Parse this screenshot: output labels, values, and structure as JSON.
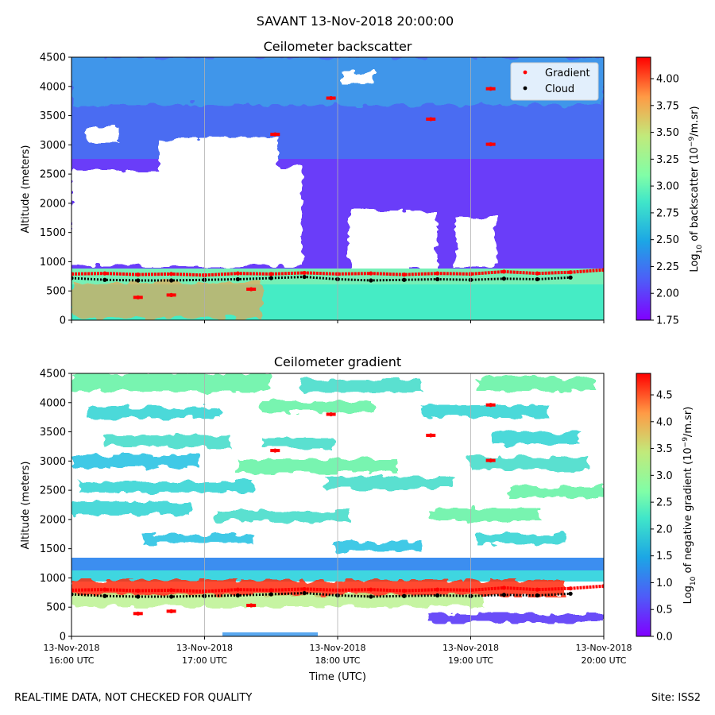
{
  "page": {
    "suptitle": "SAVANT 13-Nov-2018 20:00:00",
    "footer_left": "REAL-TIME DATA, NOT CHECKED FOR QUALITY",
    "footer_right": "Site: ISS2"
  },
  "chart_data": [
    {
      "type": "heatmap",
      "title": "Ceilometer backscatter",
      "ylabel": "Altitude (meters)",
      "xlabel": "",
      "xlim_hours": [
        16,
        20
      ],
      "ylim": [
        0,
        4500
      ],
      "yticks": [
        0,
        500,
        1000,
        1500,
        2000,
        2500,
        3000,
        3500,
        4000,
        4500
      ],
      "xtick_hours": [
        16,
        17,
        18,
        19,
        20
      ],
      "show_xtick_labels": false,
      "colorbar": {
        "label_prefix": "Log",
        "label_sub": "10",
        "label_mid": " of backscatter (10",
        "label_sup": "−9",
        "label_suffix": "/m.sr)",
        "range": [
          1.75,
          4.2
        ],
        "ticks": [
          "1.75",
          "2.00",
          "2.25",
          "2.50",
          "2.75",
          "3.00",
          "3.25",
          "3.50",
          "3.75",
          "4.00"
        ]
      },
      "legend": {
        "placement": "top-right",
        "entries": [
          {
            "label": "Gradient",
            "color": "#ff0000"
          },
          {
            "label": "Cloud",
            "color": "#000000"
          }
        ]
      },
      "series": [
        {
          "name": "Gradient (boundary layer top)",
          "color": "#ff0000",
          "x_hours": [
            16.0,
            16.25,
            16.5,
            16.75,
            17.0,
            17.25,
            17.5,
            17.75,
            18.0,
            18.25,
            18.5,
            18.75,
            19.0,
            19.25,
            19.5,
            19.75,
            20.0
          ],
          "y": [
            790,
            800,
            780,
            790,
            770,
            800,
            790,
            810,
            790,
            800,
            780,
            800,
            790,
            830,
            800,
            820,
            860
          ]
        },
        {
          "name": "Cloud",
          "color": "#000000",
          "x_hours": [
            16.0,
            16.25,
            16.5,
            16.75,
            17.0,
            17.25,
            17.5,
            17.75,
            18.0,
            18.25,
            18.5,
            18.75,
            19.0,
            19.25,
            19.5,
            19.75
          ],
          "y": [
            720,
            690,
            680,
            680,
            690,
            700,
            720,
            740,
            700,
            680,
            690,
            700,
            690,
            710,
            700,
            730
          ]
        },
        {
          "name": "Gradient (aloft)",
          "color": "#ff0000",
          "x_hours": [
            17.53,
            17.95,
            18.7,
            19.15,
            19.15,
            16.5,
            16.75,
            17.35
          ],
          "y": [
            3180,
            3800,
            3440,
            3960,
            3010,
            390,
            430,
            530
          ]
        }
      ]
    },
    {
      "type": "heatmap",
      "title": "Ceilometer gradient",
      "ylabel": "Altitude (meters)",
      "xlabel": "Time (UTC)",
      "xlim_hours": [
        16,
        20
      ],
      "ylim": [
        0,
        4500
      ],
      "yticks": [
        0,
        500,
        1000,
        1500,
        2000,
        2500,
        3000,
        3500,
        4000,
        4500
      ],
      "xtick_hours": [
        16,
        17,
        18,
        19,
        20
      ],
      "show_xtick_labels": true,
      "xtick_labels": [
        {
          "date": "13-Nov-2018",
          "time": "16:00 UTC"
        },
        {
          "date": "13-Nov-2018",
          "time": "17:00 UTC"
        },
        {
          "date": "13-Nov-2018",
          "time": "18:00 UTC"
        },
        {
          "date": "13-Nov-2018",
          "time": "19:00 UTC"
        },
        {
          "date": "13-Nov-2018",
          "time": "20:00 UTC"
        }
      ],
      "colorbar": {
        "label_prefix": "Log",
        "label_sub": "10",
        "label_mid": " of negative gradient (10",
        "label_sup": "−9",
        "label_suffix": "/m.sr)",
        "range": [
          0.0,
          4.9
        ],
        "ticks": [
          "0.0",
          "0.5",
          "1.0",
          "1.5",
          "2.0",
          "2.5",
          "3.0",
          "3.5",
          "4.0",
          "4.5"
        ]
      },
      "series": [
        {
          "name": "Gradient (boundary layer top)",
          "color": "#ff0000",
          "x_hours": [
            16.0,
            16.25,
            16.5,
            16.75,
            17.0,
            17.25,
            17.5,
            17.75,
            18.0,
            18.25,
            18.5,
            18.75,
            19.0,
            19.25,
            19.5,
            19.75,
            20.0
          ],
          "y": [
            790,
            800,
            780,
            790,
            770,
            800,
            790,
            810,
            790,
            800,
            780,
            800,
            790,
            830,
            800,
            820,
            860
          ]
        },
        {
          "name": "Cloud",
          "color": "#000000",
          "x_hours": [
            16.0,
            16.25,
            16.5,
            16.75,
            17.0,
            17.25,
            17.5,
            17.75,
            18.0,
            18.25,
            18.5,
            18.75,
            19.0,
            19.25,
            19.5,
            19.75
          ],
          "y": [
            720,
            690,
            680,
            680,
            690,
            700,
            720,
            740,
            700,
            680,
            690,
            700,
            690,
            710,
            700,
            730
          ]
        },
        {
          "name": "Gradient (aloft)",
          "color": "#ff0000",
          "x_hours": [
            17.53,
            17.95,
            18.7,
            19.15,
            19.15,
            16.5,
            16.75,
            17.35
          ],
          "y": [
            3180,
            3800,
            3440,
            3960,
            3010,
            390,
            430,
            530
          ]
        }
      ]
    }
  ]
}
